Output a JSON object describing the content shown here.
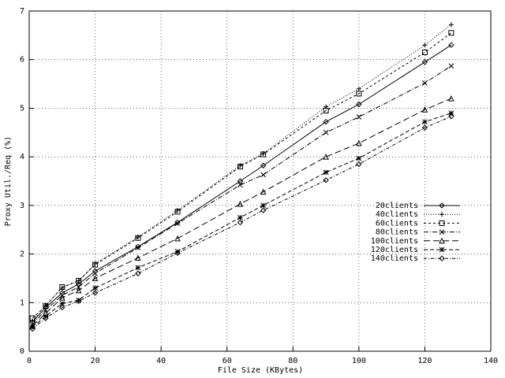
{
  "chart_data": {
    "type": "line",
    "xlabel": "File Size (KBytes)",
    "ylabel": "Proxy Util./Req (%)",
    "x": [
      1,
      5,
      10,
      15,
      20,
      33,
      45,
      64,
      71,
      90,
      100,
      120,
      128
    ],
    "xlim": [
      0,
      140
    ],
    "xticks": [
      0,
      20,
      40,
      60,
      80,
      100,
      120,
      140
    ],
    "ylim": [
      0,
      7
    ],
    "yticks": [
      0,
      1,
      2,
      3,
      4,
      5,
      6,
      7
    ],
    "grid": true,
    "legend": "right",
    "series": [
      {
        "name": "20clients",
        "color": "#000000",
        "dash": "none",
        "marker": "diamond",
        "values": [
          0.6,
          0.9,
          1.2,
          1.38,
          1.65,
          2.15,
          2.65,
          3.5,
          3.82,
          4.72,
          5.08,
          5.95,
          6.3
        ]
      },
      {
        "name": "40clients",
        "color": "#000000",
        "dash": "1,2",
        "marker": "plus",
        "values": [
          0.62,
          0.95,
          1.3,
          1.45,
          1.8,
          2.35,
          2.9,
          3.82,
          4.07,
          5.03,
          5.4,
          6.3,
          6.72
        ]
      },
      {
        "name": "60clients",
        "color": "#000000",
        "dash": "3,3",
        "marker": "square",
        "values": [
          0.68,
          0.93,
          1.32,
          1.45,
          1.78,
          2.33,
          2.87,
          3.8,
          4.05,
          4.95,
          5.3,
          6.15,
          6.55
        ]
      },
      {
        "name": "80clients",
        "color": "#000000",
        "dash": "6,2,1,2",
        "marker": "cross",
        "values": [
          0.55,
          0.85,
          1.15,
          1.32,
          1.6,
          2.13,
          2.63,
          3.42,
          3.63,
          4.5,
          4.82,
          5.52,
          5.87
        ]
      },
      {
        "name": "100clients",
        "color": "#000000",
        "dash": "8,4",
        "marker": "triangle",
        "values": [
          0.52,
          0.78,
          1.1,
          1.25,
          1.5,
          1.92,
          2.32,
          3.03,
          3.28,
          4.0,
          4.28,
          4.97,
          5.2
        ]
      },
      {
        "name": "120clients",
        "color": "#000000",
        "dash": "5,3",
        "marker": "star",
        "values": [
          0.5,
          0.72,
          0.98,
          1.05,
          1.3,
          1.72,
          2.05,
          2.75,
          3.0,
          3.68,
          3.97,
          4.72,
          4.9
        ]
      },
      {
        "name": "140clients",
        "color": "#000000",
        "dash": "4,2,1,2",
        "marker": "diamond",
        "values": [
          0.46,
          0.68,
          0.9,
          1.03,
          1.2,
          1.6,
          2.02,
          2.65,
          2.9,
          3.52,
          3.85,
          4.6,
          4.83
        ]
      }
    ]
  }
}
